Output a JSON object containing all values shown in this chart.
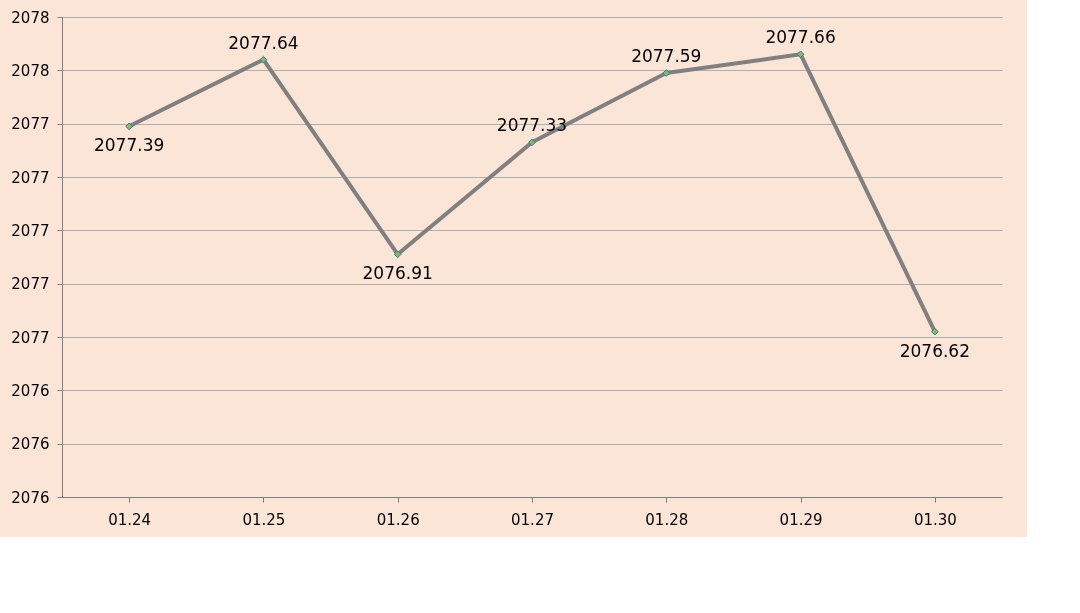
{
  "chart_data": {
    "type": "line",
    "categories": [
      "01.24",
      "01.25",
      "01.26",
      "01.27",
      "01.28",
      "01.29",
      "01.30"
    ],
    "series": [
      {
        "color": "#808080",
        "values": [
          2077.39,
          2077.64,
          2076.91,
          2077.33,
          2077.59,
          2077.66,
          2076.62
        ]
      }
    ],
    "ylim": [
      2076.0,
      2077.8
    ],
    "yticks": [
      {
        "value": 2076.0,
        "label": "2076"
      },
      {
        "value": 2076.2,
        "label": "2076"
      },
      {
        "value": 2076.4,
        "label": "2076"
      },
      {
        "value": 2076.6,
        "label": "2077"
      },
      {
        "value": 2076.8,
        "label": "2077"
      },
      {
        "value": 2077.0,
        "label": "2077"
      },
      {
        "value": 2077.2,
        "label": "2077"
      },
      {
        "value": 2077.4,
        "label": "2077"
      },
      {
        "value": 2077.6,
        "label": "2078"
      },
      {
        "value": 2077.8,
        "label": "2078"
      }
    ],
    "grid": "y",
    "marker": "diamond",
    "line_style": "solid",
    "data_labels": true
  }
}
